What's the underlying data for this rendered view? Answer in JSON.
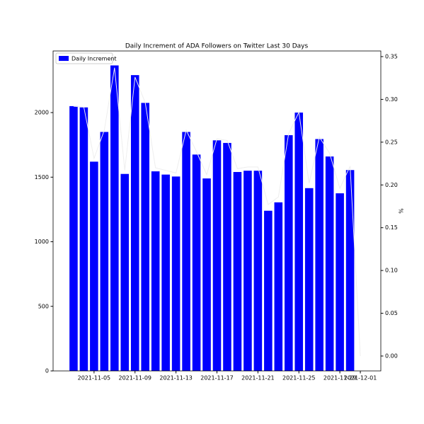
{
  "chart_data": {
    "type": "bar",
    "title": "Daily Increment of ADA Followers on Twitter Last 30 Days",
    "y2label": "%",
    "x": [
      "2021-11-03",
      "2021-11-04",
      "2021-11-05",
      "2021-11-06",
      "2021-11-07",
      "2021-11-08",
      "2021-11-09",
      "2021-11-10",
      "2021-11-11",
      "2021-11-12",
      "2021-11-13",
      "2021-11-14",
      "2021-11-15",
      "2021-11-16",
      "2021-11-17",
      "2021-11-18",
      "2021-11-19",
      "2021-11-20",
      "2021-11-21",
      "2021-11-22",
      "2021-11-23",
      "2021-11-24",
      "2021-11-25",
      "2021-11-26",
      "2021-11-27",
      "2021-11-28",
      "2021-11-29",
      "2021-11-30",
      "2021-12-01"
    ],
    "series": [
      {
        "name": "Daily Increment",
        "type": "bar",
        "color": "#0000ff",
        "values": [
          2050,
          2040,
          1620,
          1850,
          2365,
          1525,
          2290,
          2075,
          1545,
          1520,
          1505,
          1850,
          1675,
          1490,
          1785,
          1765,
          1540,
          1550,
          1550,
          1240,
          1305,
          1825,
          2000,
          1415,
          1795,
          1660,
          1375,
          1555,
          null
        ]
      },
      {
        "type": "line",
        "axis": "y2",
        "color": "#eeeeee",
        "values": [
          0.292,
          0.291,
          0.231,
          0.264,
          0.337,
          0.217,
          0.326,
          0.296,
          0.22,
          0.217,
          0.214,
          0.264,
          0.239,
          0.212,
          0.254,
          0.252,
          0.219,
          0.221,
          0.221,
          0.177,
          0.186,
          0.26,
          0.285,
          0.202,
          0.256,
          0.237,
          0.196,
          0.222,
          0
        ]
      }
    ],
    "xlim": [
      "2021-11-01",
      "2021-12-03"
    ],
    "xticks": [
      "2021-11-05",
      "2021-11-09",
      "2021-11-13",
      "2021-11-17",
      "2021-11-21",
      "2021-11-25",
      "2021-11-29",
      "2021-12-01"
    ],
    "ylim": [
      0,
      2477
    ],
    "yticks": [
      0,
      500,
      1000,
      1500,
      2000
    ],
    "y2lim": [
      -0.0174,
      0.3566
    ],
    "y2ticks": [
      {
        "value": 0,
        "label": "0.00"
      },
      {
        "value": 0.05,
        "label": "0.05"
      },
      {
        "value": 0.1,
        "label": "0.10"
      },
      {
        "value": 0.15,
        "label": "0.15"
      },
      {
        "value": 0.2,
        "label": "0.20"
      },
      {
        "value": 0.25,
        "label": "0.25"
      },
      {
        "value": 0.3,
        "label": "0.30"
      },
      {
        "value": 0.35,
        "label": "0.35"
      }
    ],
    "legend": "upper left"
  }
}
